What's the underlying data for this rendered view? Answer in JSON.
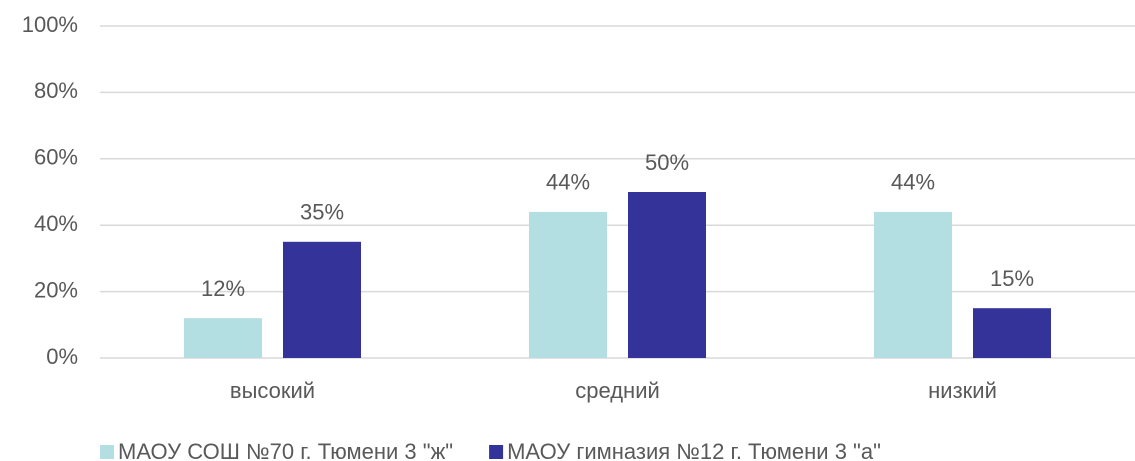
{
  "chart_data": {
    "type": "bar",
    "categories": [
      "высокий",
      "средний",
      "низкий"
    ],
    "series": [
      {
        "name": "МАОУ СОШ №70 г. Тюмени 3 \"ж\"",
        "color": "#b4dfe2",
        "values": [
          12,
          44,
          44
        ],
        "value_labels": [
          "12%",
          "44%",
          "44%"
        ]
      },
      {
        "name": "МАОУ гимназия №12 г. Тюмени 3 \"а\"",
        "color": "#343399",
        "values": [
          35,
          50,
          15
        ],
        "value_labels": [
          "35%",
          "50%",
          "15%"
        ]
      }
    ],
    "ylim": [
      0,
      100
    ],
    "yticks": [
      {
        "value": 0,
        "label": "0%"
      },
      {
        "value": 20,
        "label": "20%"
      },
      {
        "value": 40,
        "label": "40%"
      },
      {
        "value": 60,
        "label": "60%"
      },
      {
        "value": 80,
        "label": "80%"
      },
      {
        "value": 100,
        "label": "100%"
      }
    ],
    "grid": true,
    "legend": "bottom"
  }
}
